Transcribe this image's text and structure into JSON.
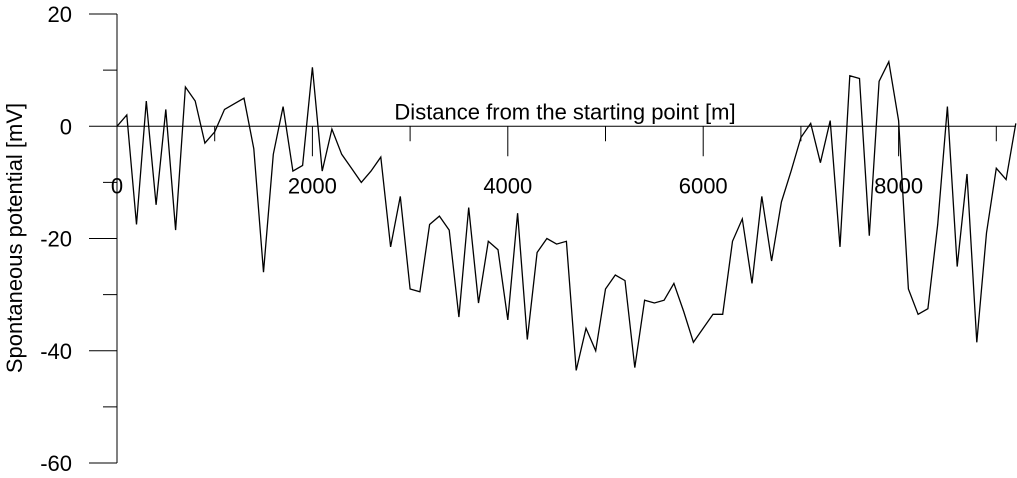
{
  "chart_data": {
    "type": "line",
    "xlabel": "Distance from the starting point [m]",
    "ylabel": "Spontaneous potential [mV]",
    "xlim": [
      0,
      9200
    ],
    "ylim": [
      -60,
      20
    ],
    "x_ticks_major": [
      0,
      2000,
      4000,
      6000,
      8000
    ],
    "x_ticks_minor": [
      1000,
      3000,
      5000,
      7000,
      9000
    ],
    "y_ticks_major": [
      20,
      0,
      -20,
      -40,
      -60
    ],
    "y_ticks_minor": [
      10,
      -10,
      -30,
      -50
    ],
    "x_axis_position": "y = 0",
    "grid": false,
    "legend": "none",
    "series": [
      {
        "x": [
          0,
          100,
          200,
          300,
          400,
          500,
          600,
          700,
          800,
          900,
          1000,
          1100,
          1200,
          1300,
          1400,
          1500,
          1600,
          1700,
          1800,
          1900,
          2000,
          2100,
          2200,
          2300,
          2400,
          2500,
          2600,
          2700,
          2800,
          2900,
          3000,
          3100,
          3200,
          3300,
          3400,
          3500,
          3600,
          3700,
          3800,
          3900,
          4000,
          4100,
          4200,
          4300,
          4400,
          4500,
          4600,
          4700,
          4800,
          4900,
          5000,
          5100,
          5200,
          5300,
          5400,
          5500,
          5600,
          5700,
          5800,
          5900,
          6000,
          6100,
          6200,
          6300,
          6400,
          6500,
          6600,
          6700,
          6800,
          6900,
          7000,
          7100,
          7200,
          7300,
          7400,
          7500,
          7600,
          7700,
          7800,
          7900,
          8000,
          8100,
          8200,
          8300,
          8400,
          8500,
          8600,
          8700,
          8800,
          8900,
          9000,
          9100,
          9200
        ],
        "y": [
          0,
          2,
          -17.5,
          4.5,
          -14,
          3,
          -18.5,
          7,
          4.5,
          -3,
          -1,
          3,
          4,
          5,
          -4,
          -26,
          -5,
          3.5,
          -8,
          -7,
          10.5,
          -8,
          -0.5,
          -5,
          -7.5,
          -10,
          -8,
          -5.5,
          -21.5,
          -12.5,
          -29,
          -29.5,
          -17.5,
          -16,
          -18.5,
          -34,
          -14.5,
          -31.5,
          -20.5,
          -22,
          -34.5,
          -15.5,
          -38,
          -22.5,
          -20,
          -21,
          -20.5,
          -43.5,
          -36,
          -40,
          -29,
          -26.5,
          -27.5,
          -43,
          -31,
          -31.5,
          -31,
          -28,
          -33,
          -38.5,
          -36,
          -33.5,
          -33.5,
          -20.5,
          -16.5,
          -28,
          -12.5,
          -24,
          -13.5,
          -8,
          -2,
          0.5,
          -6.5,
          1,
          -21.5,
          9,
          8.5,
          -19.5,
          8,
          11.5,
          1,
          -29,
          -33.5,
          -32.5,
          -17.5,
          3.5,
          -25,
          -8.5,
          -38.5,
          -19,
          -7.5,
          -9.5,
          0.5
        ]
      }
    ]
  }
}
